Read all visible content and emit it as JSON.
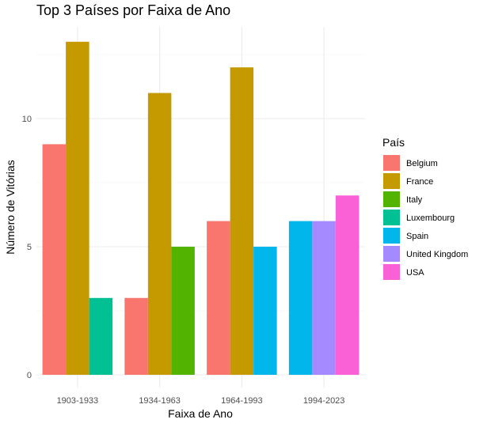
{
  "chart_data": {
    "type": "bar",
    "title": "Top 3 Países por Faixa de Ano",
    "xlabel": "Faixa de Ano",
    "ylabel": "Número de Vitórias",
    "categories": [
      "1903-1933",
      "1934-1963",
      "1964-1993",
      "1994-2023"
    ],
    "ylim": [
      0,
      14
    ],
    "yticks": [
      0,
      5,
      10
    ],
    "grid": true,
    "legend_title": "País",
    "legend_position": "right",
    "series": [
      {
        "name": "Belgium",
        "color": "#F8766D",
        "values": [
          9,
          3,
          6,
          null
        ]
      },
      {
        "name": "France",
        "color": "#C49A00",
        "values": [
          13,
          11,
          12,
          null
        ]
      },
      {
        "name": "Italy",
        "color": "#53B400",
        "values": [
          null,
          5,
          null,
          null
        ]
      },
      {
        "name": "Luxembourg",
        "color": "#00C094",
        "values": [
          3,
          null,
          null,
          null
        ]
      },
      {
        "name": "Spain",
        "color": "#00B6EB",
        "values": [
          null,
          null,
          5,
          6
        ]
      },
      {
        "name": "United Kingdom",
        "color": "#A58AFF",
        "values": [
          null,
          null,
          null,
          6
        ]
      },
      {
        "name": "USA",
        "color": "#FB61D7",
        "values": [
          null,
          null,
          null,
          7
        ]
      }
    ]
  }
}
